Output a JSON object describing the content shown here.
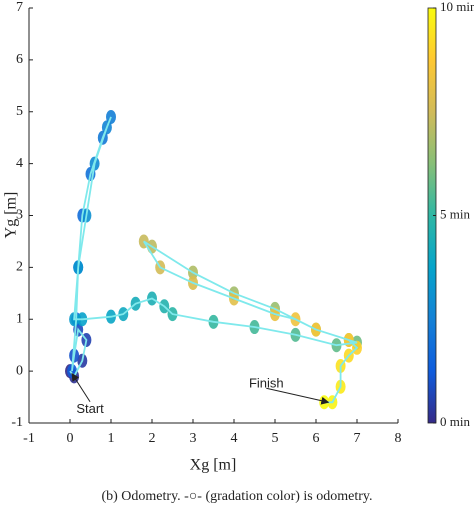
{
  "chart_data": {
    "type": "line",
    "xlabel": "Xg [m]",
    "ylabel": "Yg [m]",
    "caption": "(b) Odometry. -○- (gradation color) is odometry.",
    "xlim": [
      -1,
      8
    ],
    "xticks": [
      -1,
      0,
      1,
      2,
      3,
      4,
      5,
      6,
      7,
      8
    ],
    "ylim": [
      -1,
      7
    ],
    "yticks": [
      -1,
      0,
      1,
      2,
      3,
      4,
      5,
      6,
      7
    ],
    "series": [
      {
        "name": "odometry",
        "color": "#7fe9ec",
        "x": [
          0,
          0.1,
          0.3,
          0.4,
          0.2,
          0.1,
          0.05,
          0.15,
          0.2,
          0.3,
          0.5,
          0.8,
          1,
          0.9,
          0.6,
          0.4,
          0.2,
          0.1,
          0.3,
          1,
          1.3,
          1.6,
          2.0,
          2.3,
          2.5,
          3.5,
          4.5,
          5.5,
          6.5,
          7,
          6.8,
          6,
          5,
          4,
          3,
          2,
          1.8,
          2.2,
          3,
          4,
          5,
          5.5,
          6,
          6.8,
          7,
          6.8,
          6.6,
          6.6,
          6.4,
          6.2
        ],
        "values": [
          0,
          -0.1,
          0.2,
          0.6,
          0.8,
          0.3,
          0.0,
          1,
          2,
          3,
          3.8,
          4.5,
          4.9,
          4.7,
          4,
          3,
          2,
          1,
          1.0,
          1.05,
          1.1,
          1.3,
          1.4,
          1.25,
          1.1,
          0.95,
          0.85,
          0.7,
          0.5,
          0.55,
          0.6,
          0.8,
          1.2,
          1.5,
          1.9,
          2.4,
          2.5,
          2.0,
          1.7,
          1.4,
          1.1,
          1.0,
          0.8,
          0.6,
          0.45,
          0.3,
          0.1,
          -0.3,
          -0.6,
          -0.6
        ]
      }
    ],
    "colorbar": {
      "clim": [
        0,
        10
      ],
      "ticks": [
        {
          "value": 0,
          "label": "0 min"
        },
        {
          "value": 5,
          "label": "5 min"
        },
        {
          "value": 10,
          "label": "10 min"
        }
      ],
      "colormap": [
        "#352a87",
        "#0f5cdd",
        "#1481d6",
        "#06a4ca",
        "#2eb7a4",
        "#87bf77",
        "#d1bb59",
        "#fec832",
        "#f9fb0e"
      ]
    },
    "annotations": [
      {
        "text": "Start",
        "x": 0.05,
        "y": -0.05
      },
      {
        "text": "Finish",
        "x": 6.3,
        "y": -0.6
      }
    ]
  }
}
